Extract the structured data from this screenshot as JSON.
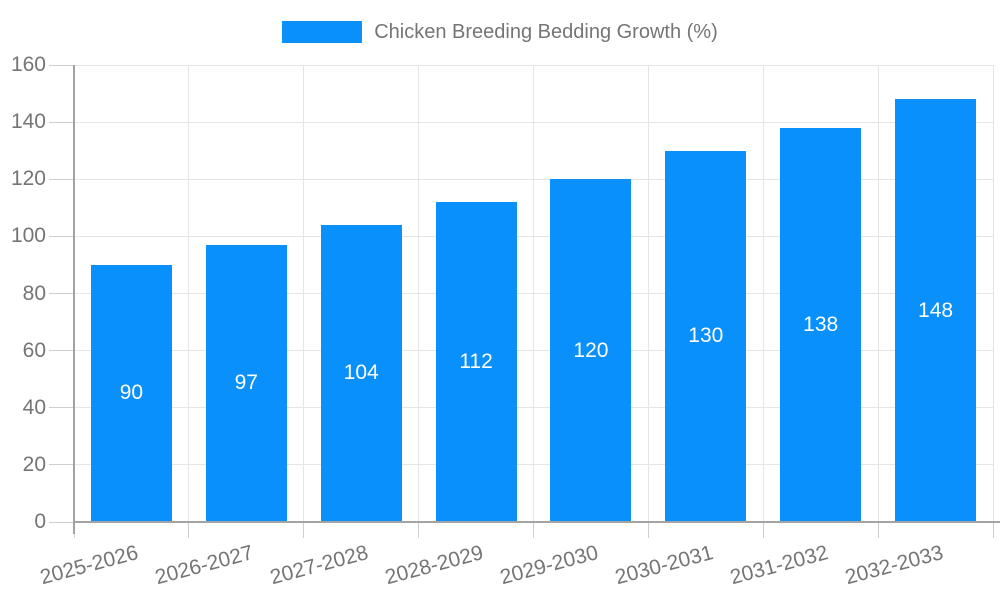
{
  "chart_data": {
    "type": "bar",
    "title": "Chicken Breeding Bedding Growth (%)",
    "categories": [
      "2025-2026",
      "2026-2027",
      "2027-2028",
      "2028-2029",
      "2029-2030",
      "2030-2031",
      "2031-2032",
      "2032-2033"
    ],
    "values": [
      90,
      97,
      104,
      112,
      120,
      130,
      138,
      148
    ],
    "xlabel": "",
    "ylabel": "",
    "ylim": [
      0,
      160
    ],
    "ytick_step": 20,
    "grid": true,
    "legend_position": "top-center",
    "bar_labels_inside": true,
    "colors": {
      "bar": "#0A90FA",
      "bar_label": "#FFFFFF",
      "grid": "#E5E5E5",
      "axis": "#A3A3A3",
      "tick": "#CFCFCF",
      "text": "#757575",
      "background": "#FFFFFF"
    }
  }
}
